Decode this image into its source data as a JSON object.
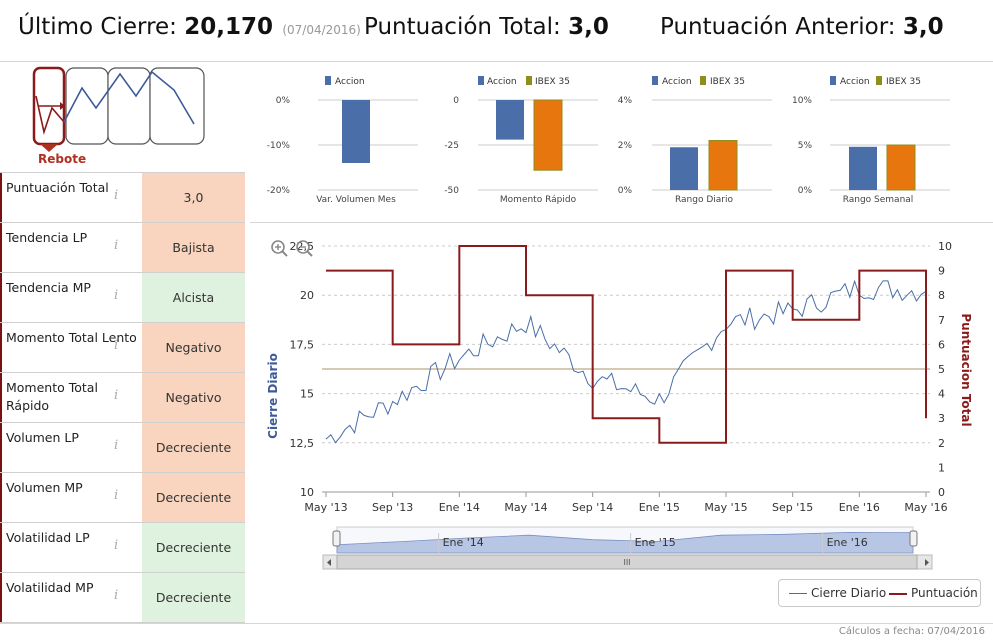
{
  "header": {
    "last_close_label": "Último Cierre:",
    "last_close_value": "20,170",
    "last_close_date": "(07/04/2016)",
    "total_score_label": "Puntuación Total:",
    "total_score_value": "3,0",
    "prev_score_label": "Puntuación Anterior:",
    "prev_score_value": "3,0"
  },
  "pattern": {
    "label": "Rebote",
    "color": "#b03020"
  },
  "scores": [
    {
      "label": "Puntuación Total",
      "value": "3,0",
      "status": "orange"
    },
    {
      "label": "Tendencia LP",
      "value": "Bajista",
      "status": "orange"
    },
    {
      "label": "Tendencia MP",
      "value": "Alcista",
      "status": "green"
    },
    {
      "label": "Momento Total Lento",
      "value": "Negativo",
      "status": "orange"
    },
    {
      "label": "Momento Total Rápido",
      "value": "Negativo",
      "status": "orange"
    },
    {
      "label": "Volumen LP",
      "value": "Decreciente",
      "status": "orange"
    },
    {
      "label": "Volumen MP",
      "value": "Decreciente",
      "status": "orange"
    },
    {
      "label": "Volatilidad LP",
      "value": "Decreciente",
      "status": "green"
    },
    {
      "label": "Volatilidad MP",
      "value": "Decreciente",
      "status": "green"
    }
  ],
  "info_icon": "i",
  "colors": {
    "accion": "#4a6ea8",
    "ibex": "#e8760f",
    "ibex_base": "#8e8e1e",
    "score_line": "#8b1a1a",
    "threshold": "#c9b79c"
  },
  "chart_data": [
    {
      "type": "bar",
      "xlabel": "Var. Volumen Mes",
      "ylim": [
        -20,
        0
      ],
      "ticks": [
        "0%",
        "-10%",
        "-20%"
      ],
      "series": [
        {
          "name": "Accion",
          "values": [
            -14
          ]
        }
      ]
    },
    {
      "type": "bar",
      "xlabel": "Momento Rápido",
      "ylim": [
        -50,
        0
      ],
      "ticks": [
        "0",
        "-25",
        "-50"
      ],
      "series": [
        {
          "name": "Accion",
          "values": [
            -22
          ]
        },
        {
          "name": "IBEX 35",
          "values": [
            -39
          ]
        }
      ]
    },
    {
      "type": "bar",
      "xlabel": "Rango Diario",
      "ylim": [
        0,
        4
      ],
      "ticks": [
        "4%",
        "2%",
        "0%"
      ],
      "series": [
        {
          "name": "Accion",
          "values": [
            1.9
          ]
        },
        {
          "name": "IBEX 35",
          "values": [
            2.2
          ]
        }
      ]
    },
    {
      "type": "bar",
      "xlabel": "Rango Semanal",
      "ylim": [
        0,
        10
      ],
      "ticks": [
        "10%",
        "5%",
        "0%"
      ],
      "series": [
        {
          "name": "Accion",
          "values": [
            4.8
          ]
        },
        {
          "name": "IBEX 35",
          "values": [
            5.0
          ]
        }
      ]
    },
    {
      "type": "line",
      "ylabel": "Cierre Diario",
      "y2label": "Puntuacion Total",
      "x_ticks": [
        "May '13",
        "Sep '13",
        "Ene '14",
        "May '14",
        "Sep '14",
        "Ene '15",
        "May '15",
        "Sep '15",
        "Ene '16",
        "May '16"
      ],
      "y_ticks": [
        "10",
        "12,5",
        "15",
        "17,5",
        "20",
        "22,5"
      ],
      "y2_ticks": [
        "0",
        "1",
        "2",
        "3",
        "4",
        "5",
        "6",
        "7",
        "8",
        "9",
        "10"
      ],
      "ylim": [
        10,
        22.5
      ],
      "y2lim": [
        0,
        10
      ],
      "threshold": 5,
      "navigator_ticks": [
        "Ene '14",
        "Ene '15",
        "Ene '16"
      ],
      "navigator_scroll_glyph": "III",
      "series": [
        {
          "name": "Cierre Diario",
          "x": [
            "May '13",
            "Sep '13",
            "Ene '14",
            "May '14",
            "Sep '14",
            "Ene '15",
            "May '15",
            "Sep '15",
            "Ene '16",
            "May '16"
          ],
          "values": [
            12.7,
            14.6,
            16.8,
            18.6,
            15.8,
            14.7,
            18.6,
            19.2,
            20.4,
            20.2
          ]
        },
        {
          "name": "Puntuación",
          "x": [
            "May '13",
            "Sep '13",
            "Ene '14",
            "May '14",
            "Sep '14",
            "Ene '15",
            "May '15",
            "Sep '15",
            "Ene '16",
            "May '16"
          ],
          "values": [
            9,
            6,
            10,
            8,
            3,
            2,
            9,
            7,
            9,
            3
          ]
        }
      ]
    }
  ],
  "legend": {
    "close": "Cierre Diario",
    "score": "Puntuación"
  },
  "footer": "Cálculos a fecha: 07/04/2016"
}
